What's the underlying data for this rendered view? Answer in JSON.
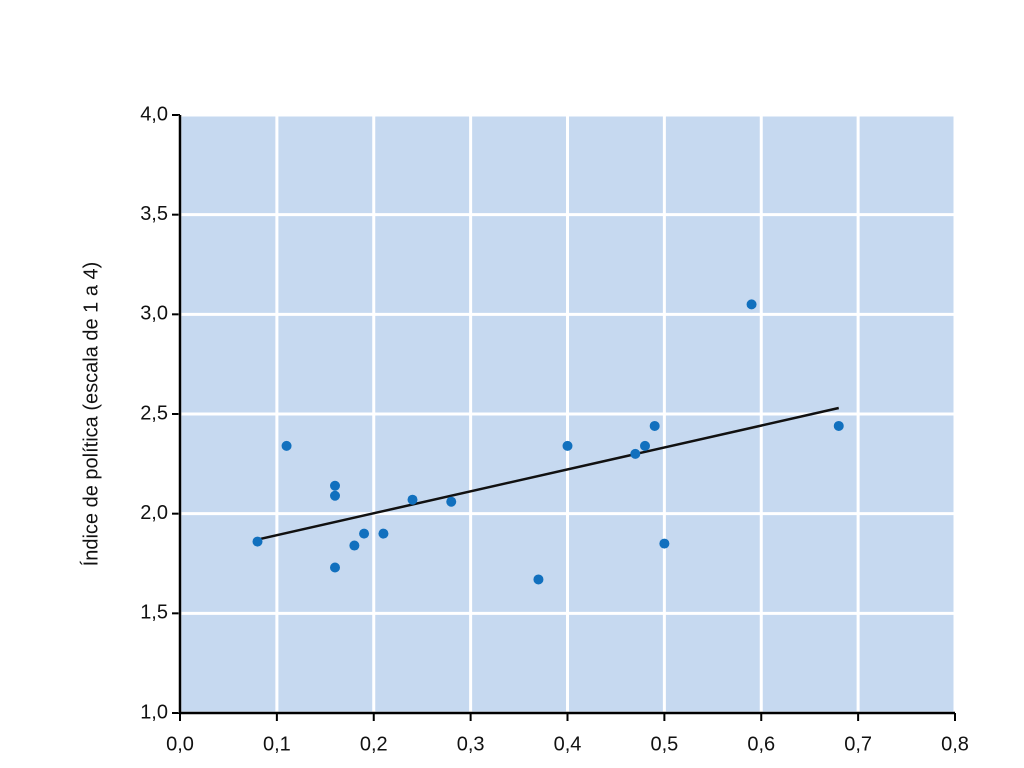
{
  "chart_data": {
    "type": "scatter",
    "y_label": "Índice de política (escala de 1 a 4)",
    "x": [
      0.08,
      0.11,
      0.16,
      0.16,
      0.16,
      0.18,
      0.19,
      0.21,
      0.24,
      0.28,
      0.37,
      0.4,
      0.47,
      0.48,
      0.49,
      0.5,
      0.59,
      0.68
    ],
    "values": [
      1.86,
      2.34,
      2.14,
      2.09,
      1.73,
      1.84,
      1.9,
      1.9,
      2.07,
      2.06,
      1.67,
      2.34,
      2.3,
      2.34,
      2.44,
      1.85,
      3.05,
      2.44
    ],
    "color": "#1170be",
    "trendline": {
      "x": [
        0.08,
        0.68
      ],
      "values": [
        1.87,
        2.53
      ],
      "color": "#111111"
    },
    "plot_background": "#c6d9f0",
    "grid": true,
    "xlim": [
      0,
      0.8
    ],
    "xticks": [
      {
        "value": 0,
        "label": "0,0"
      },
      {
        "value": 0.1,
        "label": "0,1"
      },
      {
        "value": 0.2,
        "label": "0,2"
      },
      {
        "value": 0.3,
        "label": "0,3"
      },
      {
        "value": 0.4,
        "label": "0,4"
      },
      {
        "value": 0.5,
        "label": "0,5"
      },
      {
        "value": 0.6,
        "label": "0,6"
      },
      {
        "value": 0.7,
        "label": "0,7"
      },
      {
        "value": 0.8,
        "label": "0,8"
      }
    ],
    "ylim": [
      1,
      4
    ],
    "yticks": [
      {
        "value": 1,
        "label": "1,0"
      },
      {
        "value": 1.5,
        "label": "1,5"
      },
      {
        "value": 2,
        "label": "2,0"
      },
      {
        "value": 2.5,
        "label": "2,5"
      },
      {
        "value": 3,
        "label": "3,0"
      },
      {
        "value": 3.5,
        "label": "3,5"
      },
      {
        "value": 4,
        "label": "4,0"
      }
    ]
  }
}
